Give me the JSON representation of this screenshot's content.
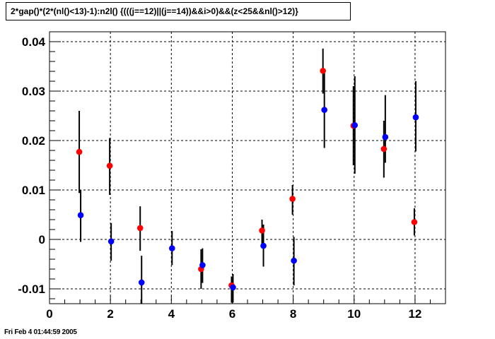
{
  "title": "2*gap()*(2*(nl()<13)-1):n2l() {(((j==12)||(j==14))&&i>0)&&(z<25&&nl()>12)}",
  "footer": "Fri Feb  4 01:44:59 2005",
  "colors": {
    "series_red": "#ff0000",
    "series_blue": "#0000ff",
    "error_bar": "#000000",
    "grid": "#000000"
  },
  "chart_data": {
    "type": "scatter",
    "title": "2*gap()*(2*(nl()<13)-1):n2l() {(((j==12)||(j==14))&&i>0)&&(z<25&&nl()>12)}",
    "xlabel": "",
    "ylabel": "",
    "xlim": [
      0,
      13
    ],
    "ylim": [
      -0.013,
      0.042
    ],
    "x_ticks": [
      0,
      2,
      4,
      6,
      8,
      10,
      12
    ],
    "x_tick_labels": [
      "0",
      "2",
      "4",
      "6",
      "8",
      "10",
      "12"
    ],
    "y_ticks": [
      -0.01,
      0,
      0.01,
      0.02,
      0.03,
      0.04
    ],
    "y_tick_labels": [
      "-0.01",
      "0",
      "0.01",
      "0.02",
      "0.03",
      "0.04"
    ],
    "grid": true,
    "series": [
      {
        "color": "#ff0000",
        "points": [
          {
            "x": 1,
            "y": 0.0177,
            "lo": 0.0094,
            "hi": 0.026
          },
          {
            "x": 2,
            "y": 0.0149,
            "lo": 0.009,
            "hi": 0.0205
          },
          {
            "x": 3,
            "y": 0.0023,
            "lo": -0.0023,
            "hi": 0.0067
          },
          {
            "x": 5,
            "y": -0.006,
            "lo": -0.01,
            "hi": -0.002
          },
          {
            "x": 6,
            "y": -0.0093,
            "lo": -0.0128,
            "hi": -0.0075
          },
          {
            "x": 7,
            "y": 0.0018,
            "lo": -0.0015,
            "hi": 0.004
          },
          {
            "x": 8,
            "y": 0.0082,
            "lo": 0.005,
            "hi": 0.011
          },
          {
            "x": 9,
            "y": 0.0341,
            "lo": 0.0295,
            "hi": 0.0386
          },
          {
            "x": 10,
            "y": 0.023,
            "lo": 0.015,
            "hi": 0.031
          },
          {
            "x": 11,
            "y": 0.0183,
            "lo": 0.0125,
            "hi": 0.024
          },
          {
            "x": 12,
            "y": 0.0035,
            "lo": 0.0008,
            "hi": 0.0063
          }
        ]
      },
      {
        "color": "#0000ff",
        "points": [
          {
            "x": 1,
            "y": 0.0049,
            "lo": -0.0005,
            "hi": 0.01
          },
          {
            "x": 2,
            "y": -0.0004,
            "lo": -0.0043,
            "hi": 0.0033
          },
          {
            "x": 3,
            "y": -0.0087,
            "lo": -0.013,
            "hi": -0.0033
          },
          {
            "x": 4,
            "y": -0.0018,
            "lo": -0.0052,
            "hi": 0.0017
          },
          {
            "x": 5,
            "y": -0.0052,
            "lo": -0.0088,
            "hi": -0.0018
          },
          {
            "x": 6,
            "y": -0.0097,
            "lo": -0.0128,
            "hi": -0.007
          },
          {
            "x": 7,
            "y": -0.0013,
            "lo": -0.0055,
            "hi": 0.003
          },
          {
            "x": 8,
            "y": -0.0043,
            "lo": -0.0093,
            "hi": 0.0005
          },
          {
            "x": 9,
            "y": 0.0262,
            "lo": 0.0185,
            "hi": 0.034
          },
          {
            "x": 10,
            "y": 0.0231,
            "lo": 0.0133,
            "hi": 0.033
          },
          {
            "x": 11,
            "y": 0.0207,
            "lo": 0.0155,
            "hi": 0.0292
          },
          {
            "x": 12,
            "y": 0.0247,
            "lo": 0.0178,
            "hi": 0.032
          }
        ]
      }
    ]
  }
}
